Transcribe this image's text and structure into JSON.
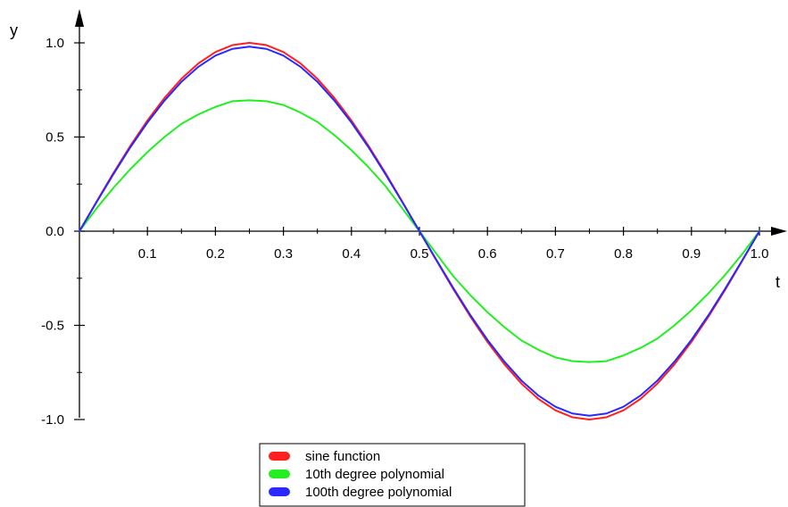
{
  "chart_data": {
    "type": "line",
    "xlabel": "t",
    "ylabel": "y",
    "xlim": [
      0,
      1.02
    ],
    "ylim": [
      -1.0,
      1.12
    ],
    "x_ticks": [
      {
        "value": 0.1,
        "label": "0.1"
      },
      {
        "value": 0.2,
        "label": "0.2"
      },
      {
        "value": 0.3,
        "label": "0.3"
      },
      {
        "value": 0.4,
        "label": "0.4"
      },
      {
        "value": 0.5,
        "label": "0.5"
      },
      {
        "value": 0.6,
        "label": "0.6"
      },
      {
        "value": 0.7,
        "label": "0.7"
      },
      {
        "value": 0.8,
        "label": "0.8"
      },
      {
        "value": 0.9,
        "label": "0.9"
      },
      {
        "value": 1.0,
        "label": "1.0"
      }
    ],
    "x_minor_ticks": [
      0.05,
      0.15,
      0.25,
      0.35,
      0.45,
      0.55,
      0.65,
      0.75,
      0.85,
      0.95
    ],
    "y_ticks": [
      {
        "value": 1.0,
        "label": "1.0"
      },
      {
        "value": 0.5,
        "label": "0.5"
      },
      {
        "value": 0.0,
        "label": "0.0"
      },
      {
        "value": -0.5,
        "label": "-0.5"
      },
      {
        "value": -1.0,
        "label": "-1.0"
      }
    ],
    "y_minor_ticks": [
      0.75,
      0.25,
      -0.25,
      -0.75
    ],
    "x": [
      0,
      0.025,
      0.05,
      0.075,
      0.1,
      0.125,
      0.15,
      0.175,
      0.2,
      0.225,
      0.25,
      0.275,
      0.3,
      0.325,
      0.35,
      0.375,
      0.4,
      0.425,
      0.45,
      0.475,
      0.5,
      0.525,
      0.55,
      0.575,
      0.6,
      0.625,
      0.65,
      0.675,
      0.7,
      0.725,
      0.75,
      0.775,
      0.8,
      0.825,
      0.85,
      0.875,
      0.9,
      0.925,
      0.95,
      0.975,
      1.0
    ],
    "series": [
      {
        "name": "sine function",
        "color": "#ff2020",
        "values": [
          0,
          0.156,
          0.309,
          0.454,
          0.588,
          0.707,
          0.809,
          0.891,
          0.951,
          0.988,
          1.0,
          0.988,
          0.951,
          0.891,
          0.809,
          0.707,
          0.588,
          0.454,
          0.309,
          0.156,
          0,
          -0.156,
          -0.309,
          -0.454,
          -0.588,
          -0.707,
          -0.809,
          -0.891,
          -0.951,
          -0.988,
          -1.0,
          -0.988,
          -0.951,
          -0.891,
          -0.809,
          -0.707,
          -0.588,
          -0.454,
          -0.309,
          -0.156,
          0
        ]
      },
      {
        "name": "10th degree polynomial",
        "color": "#22ee22",
        "values": [
          0,
          0.12,
          0.23,
          0.33,
          0.42,
          0.5,
          0.57,
          0.62,
          0.66,
          0.69,
          0.695,
          0.69,
          0.67,
          0.63,
          0.58,
          0.51,
          0.43,
          0.34,
          0.24,
          0.12,
          0,
          -0.12,
          -0.24,
          -0.34,
          -0.43,
          -0.51,
          -0.58,
          -0.63,
          -0.67,
          -0.69,
          -0.695,
          -0.69,
          -0.66,
          -0.62,
          -0.57,
          -0.5,
          -0.42,
          -0.33,
          -0.23,
          -0.12,
          0
        ]
      },
      {
        "name": "100th degree polynomial",
        "color": "#2828ff",
        "values": [
          0,
          0.153,
          0.303,
          0.446,
          0.577,
          0.693,
          0.793,
          0.873,
          0.932,
          0.968,
          0.98,
          0.968,
          0.932,
          0.873,
          0.793,
          0.693,
          0.577,
          0.446,
          0.303,
          0.153,
          0,
          -0.153,
          -0.303,
          -0.446,
          -0.577,
          -0.693,
          -0.793,
          -0.873,
          -0.932,
          -0.968,
          -0.98,
          -0.968,
          -0.932,
          -0.873,
          -0.793,
          -0.693,
          -0.577,
          -0.446,
          -0.303,
          -0.153,
          0
        ]
      }
    ],
    "legend_position": "bottom-center"
  }
}
